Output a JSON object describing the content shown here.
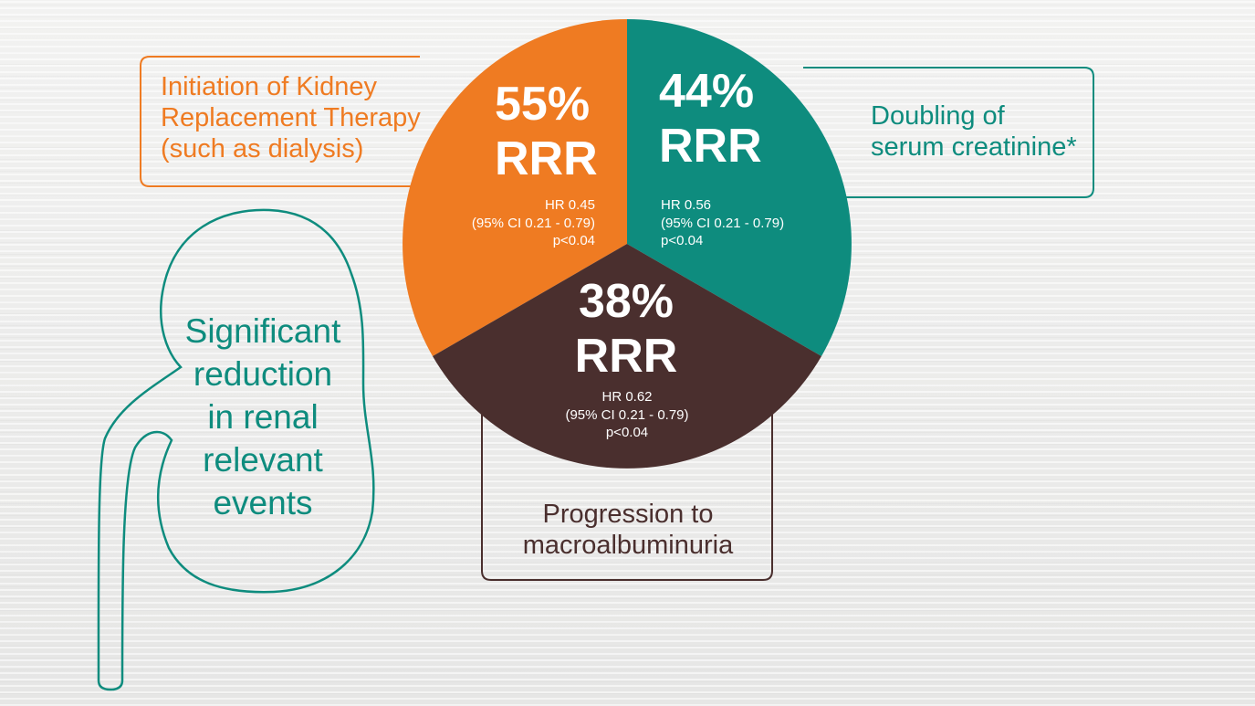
{
  "colors": {
    "orange": "#ef7b22",
    "teal": "#0e8c7e",
    "brown": "#4a2f2e",
    "background": "#e9e9e8"
  },
  "icons": {
    "kidney": "kidney-outline-icon"
  },
  "callouts": {
    "orange": [
      "Initiation of Kidney",
      "Replacement Therapy",
      "(such as dialysis)"
    ],
    "teal": [
      "Doubling of",
      "serum creatinine*"
    ],
    "brown": [
      "Progression to",
      "macroalbuminuria"
    ]
  },
  "kidney_text": [
    "Significant",
    "reduction",
    "in renal",
    "relevant",
    "events"
  ],
  "pie": {
    "orange": {
      "pct": "55%",
      "rrr": "RRR",
      "hr": "HR 0.45",
      "ci": "(95% CI 0.21 - 0.79)",
      "p": "p<0.04"
    },
    "teal": {
      "pct": "44%",
      "rrr": "RRR",
      "hr": "HR 0.56",
      "ci": "(95% CI 0.21 - 0.79)",
      "p": "p<0.04"
    },
    "brown": {
      "pct": "38%",
      "rrr": "RRR",
      "hr": "HR 0.62",
      "ci": "(95% CI 0.21 - 0.79)",
      "p": "p<0.04"
    }
  }
}
